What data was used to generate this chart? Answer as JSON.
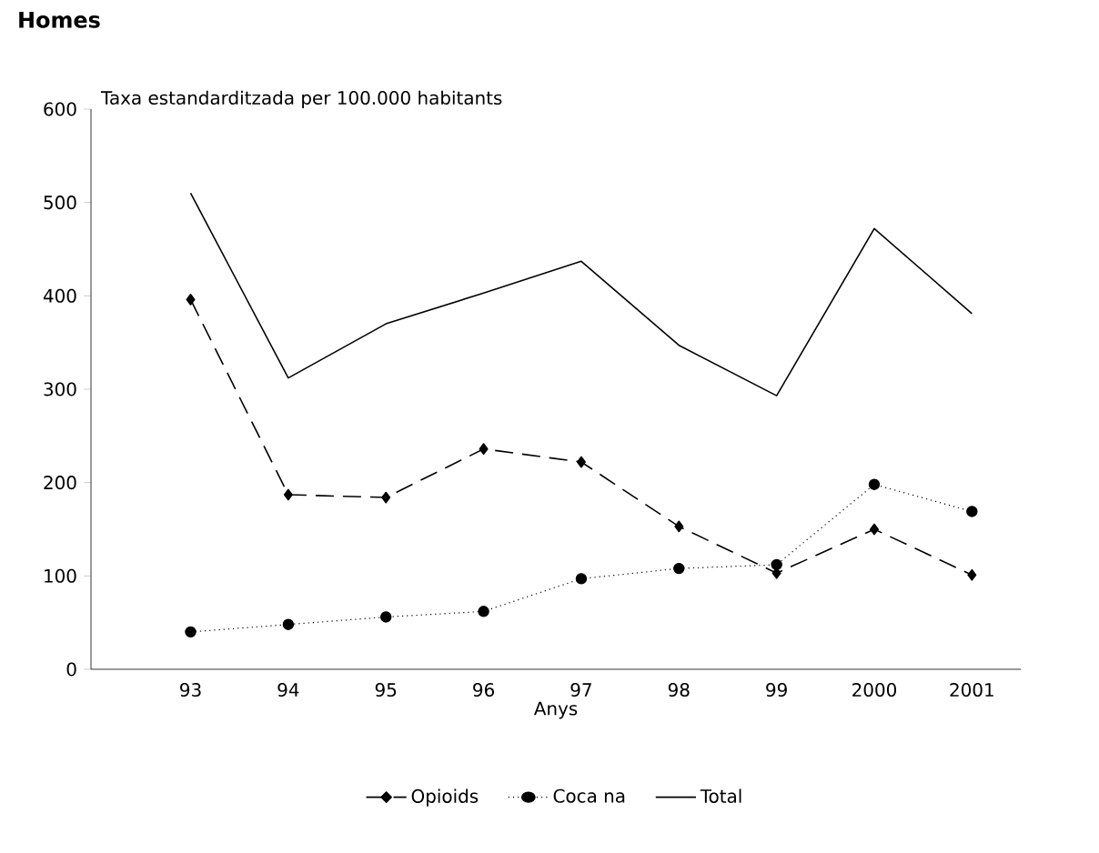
{
  "chart_data": {
    "type": "line",
    "title": "Homes",
    "ylabel": "Taxa estandarditzada per 100.000 habitants",
    "xlabel": "Anys",
    "categories": [
      "93",
      "94",
      "95",
      "96",
      "97",
      "98",
      "99",
      "2000",
      "2001"
    ],
    "series": [
      {
        "name": "Opioids",
        "color": "#000000",
        "marker": "diamond",
        "line_style": "dashed",
        "values": [
          396,
          187,
          184,
          236,
          222,
          153,
          103,
          150,
          101
        ]
      },
      {
        "name": "Coca na",
        "color": "#000000",
        "marker": "circle",
        "line_style": "dotted",
        "values": [
          40,
          48,
          56,
          62,
          97,
          108,
          112,
          198,
          169
        ]
      },
      {
        "name": "Total",
        "color": "#000000",
        "marker": "none",
        "line_style": "solid",
        "values": [
          510,
          312,
          370,
          403,
          437,
          347,
          293,
          472,
          381
        ]
      }
    ],
    "ylim": [
      0,
      600
    ],
    "yticks": [
      0,
      100,
      200,
      300,
      400,
      500,
      600
    ],
    "grid": false,
    "legend": "bottom"
  }
}
